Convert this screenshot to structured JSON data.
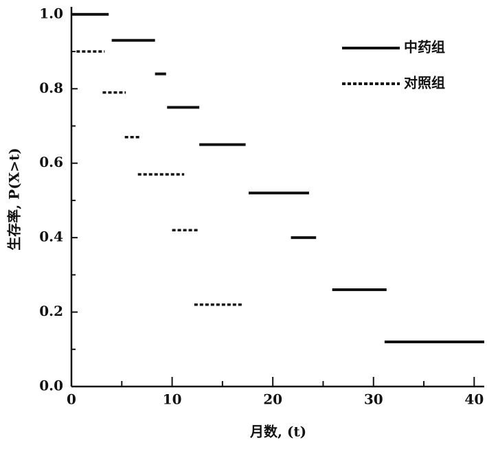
{
  "chart_data": {
    "type": "step",
    "ylabel": "生存率, P(X>t)",
    "xlabel": "月数, (t)",
    "xlim": [
      0,
      41
    ],
    "ylim": [
      0,
      1.02
    ],
    "xticks": [
      0,
      10,
      20,
      30,
      40
    ],
    "xminor": [
      5,
      15,
      25,
      35
    ],
    "yticks": [
      {
        "value": 0,
        "label": "0.0"
      },
      0.2,
      0.4,
      0.6,
      0.8,
      {
        "value": 1,
        "label": "1.0"
      }
    ],
    "yminor": [
      0.1,
      0.3,
      0.5,
      0.7,
      0.9
    ],
    "legend": "upper right",
    "series": [
      {
        "name": "中药组",
        "color": "#111111",
        "style": "solid",
        "start": [
          0,
          4.0,
          8.3,
          9.5,
          12.7,
          17.6,
          21.8,
          25.9,
          31.1
        ],
        "end": [
          3.7,
          8.3,
          9.4,
          12.7,
          17.3,
          23.6,
          24.3,
          31.3,
          41.0
        ],
        "values": [
          1.0,
          0.93,
          0.84,
          0.75,
          0.65,
          0.52,
          0.4,
          0.26,
          0.12
        ]
      },
      {
        "name": "对照组",
        "color": "#111111",
        "style": "dashed",
        "start": [
          0.5,
          3.1,
          5.3,
          6.6,
          10.0,
          12.2
        ],
        "end": [
          3.3,
          5.4,
          6.8,
          11.2,
          12.6,
          17.0
        ],
        "values": [
          0.9,
          0.79,
          0.67,
          0.57,
          0.42,
          0.22
        ]
      }
    ]
  }
}
